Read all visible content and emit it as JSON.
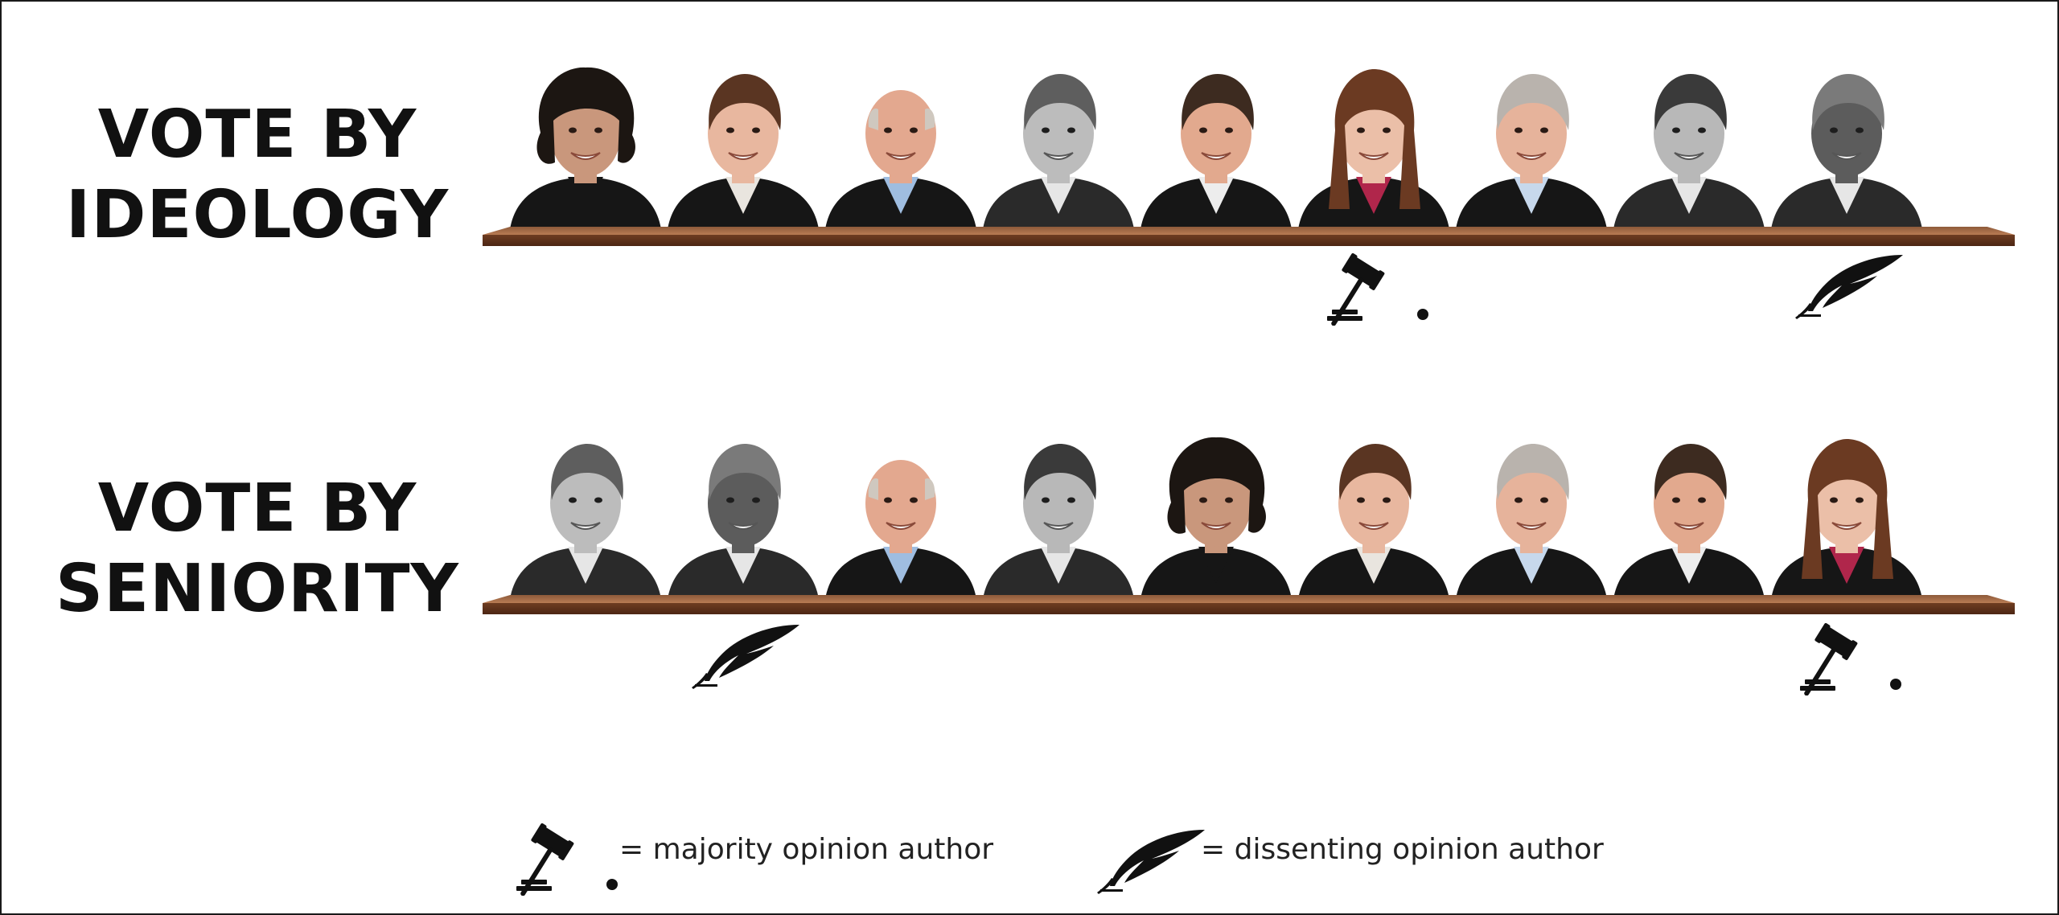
{
  "rows": [
    {
      "id": "ideology",
      "title_line1": "VOTE BY",
      "title_line2": "IDEOLOGY",
      "justices": [
        {
          "skin": "#c9977c",
          "hair": "#1c1612",
          "style": "curly",
          "robe": "#161616",
          "collar": "#161616",
          "color": true
        },
        {
          "skin": "#e8b79f",
          "hair": "#5a3522",
          "style": "short",
          "robe": "#161616",
          "collar": "#e9e5df",
          "color": true
        },
        {
          "skin": "#e3a88f",
          "hair": "#cfc8bf",
          "style": "bald",
          "robe": "#161616",
          "collar": "#9fbde0",
          "color": true
        },
        {
          "skin": "#bcbcbc",
          "hair": "#5e5e5e",
          "style": "short",
          "robe": "#2a2a2a",
          "collar": "#e6e6e6",
          "color": false
        },
        {
          "skin": "#e2a98e",
          "hair": "#3d2b20",
          "style": "short",
          "robe": "#161616",
          "collar": "#ededed",
          "color": true
        },
        {
          "skin": "#ebbfa8",
          "hair": "#6b3a22",
          "style": "long",
          "robe": "#161616",
          "collar": "#b0264b",
          "color": true
        },
        {
          "skin": "#e6b39b",
          "hair": "#b9b3ad",
          "style": "short",
          "robe": "#161616",
          "collar": "#c7d8ec",
          "color": true
        },
        {
          "skin": "#b8b8b8",
          "hair": "#3a3a3a",
          "style": "short",
          "robe": "#2a2a2a",
          "collar": "#e6e6e6",
          "color": false
        },
        {
          "skin": "#5c5c5c",
          "hair": "#7a7a7a",
          "style": "short",
          "robe": "#2a2a2a",
          "collar": "#e6e6e6",
          "color": false
        }
      ],
      "markers": [
        {
          "type": "gavel",
          "justice_index": 5
        },
        {
          "type": "quill",
          "justice_index": 8
        }
      ]
    },
    {
      "id": "seniority",
      "title_line1": "VOTE BY",
      "title_line2": "SENIORITY",
      "justices": [
        {
          "skin": "#bcbcbc",
          "hair": "#5e5e5e",
          "style": "short",
          "robe": "#2a2a2a",
          "collar": "#e6e6e6",
          "color": false
        },
        {
          "skin": "#5c5c5c",
          "hair": "#7a7a7a",
          "style": "short",
          "robe": "#2a2a2a",
          "collar": "#e6e6e6",
          "color": false
        },
        {
          "skin": "#e3a88f",
          "hair": "#cfc8bf",
          "style": "bald",
          "robe": "#161616",
          "collar": "#9fbde0",
          "color": true
        },
        {
          "skin": "#b8b8b8",
          "hair": "#3a3a3a",
          "style": "short",
          "robe": "#2a2a2a",
          "collar": "#e6e6e6",
          "color": false
        },
        {
          "skin": "#c9977c",
          "hair": "#1c1612",
          "style": "curly",
          "robe": "#161616",
          "collar": "#161616",
          "color": true
        },
        {
          "skin": "#e8b79f",
          "hair": "#5a3522",
          "style": "short",
          "robe": "#161616",
          "collar": "#e9e5df",
          "color": true
        },
        {
          "skin": "#e6b39b",
          "hair": "#b9b3ad",
          "style": "short",
          "robe": "#161616",
          "collar": "#c7d8ec",
          "color": true
        },
        {
          "skin": "#e2a98e",
          "hair": "#3d2b20",
          "style": "short",
          "robe": "#161616",
          "collar": "#ededed",
          "color": true
        },
        {
          "skin": "#ebbfa8",
          "hair": "#6b3a22",
          "style": "long",
          "robe": "#161616",
          "collar": "#b0264b",
          "color": true
        }
      ],
      "markers": [
        {
          "type": "quill",
          "justice_index": 1
        },
        {
          "type": "gavel",
          "justice_index": 8
        }
      ]
    }
  ],
  "legend": {
    "majority_text": "= majority opinion author",
    "dissent_text": "= dissenting opinion author",
    "majority_icon": "gavel-icon",
    "dissent_icon": "quill-icon"
  },
  "colors": {
    "bench_top": "#b97c54",
    "bench_front": "#5a2e18",
    "text": "#111111",
    "icon": "#111111"
  }
}
